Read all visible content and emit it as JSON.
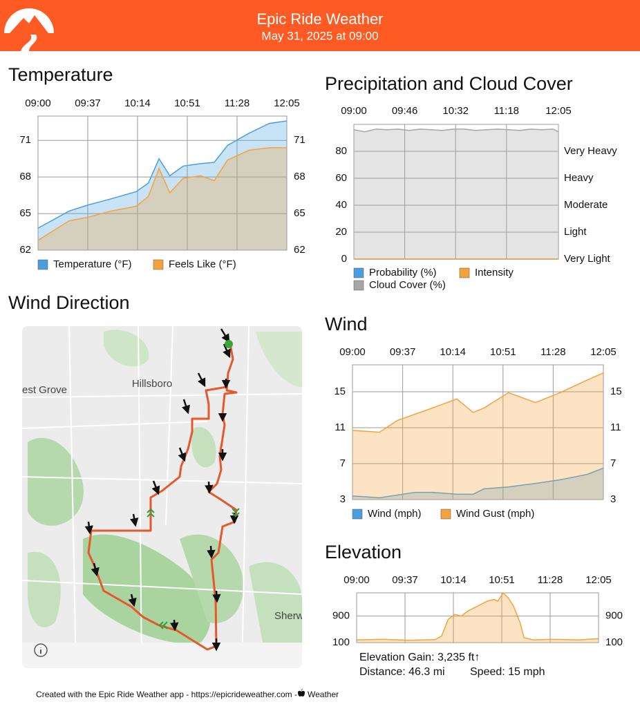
{
  "header": {
    "title": "Epic Ride Weather",
    "subtitle": "May 31, 2025 at 09:00"
  },
  "chart_data": [
    {
      "type": "area",
      "title": "Temperature",
      "x": [
        0,
        23,
        37,
        54,
        73,
        82,
        90,
        98,
        108,
        121,
        131,
        141,
        157,
        172,
        185
      ],
      "xlim": [
        0,
        185
      ],
      "xticks": [
        {
          "value": 0,
          "label": "09:00"
        },
        {
          "value": 37,
          "label": "09:37"
        },
        {
          "value": 74,
          "label": "10:14"
        },
        {
          "value": 111,
          "label": "10:51"
        },
        {
          "value": 148,
          "label": "11:28"
        },
        {
          "value": 185,
          "label": "12:05"
        }
      ],
      "ylim": [
        62,
        73
      ],
      "yticks": [
        62,
        65,
        68,
        71
      ],
      "right_labels": true,
      "grid": true,
      "series": [
        {
          "name": "Temperature (°F)",
          "color": "#4a9ee0",
          "values": [
            63.8,
            65.2,
            65.7,
            66.2,
            66.8,
            67.5,
            69.5,
            68.1,
            68.9,
            69.1,
            69.2,
            70.6,
            71.6,
            72.4,
            72.6
          ]
        },
        {
          "name": "Feels Like (°F)",
          "color": "#f5a23c",
          "values": [
            62.8,
            64.4,
            64.7,
            65.2,
            65.6,
            66.4,
            68.7,
            66.7,
            67.9,
            68.1,
            67.7,
            69.4,
            70.2,
            70.4,
            70.4
          ]
        }
      ]
    },
    {
      "type": "area",
      "title": "Precipitation and Cloud Cover",
      "x": [
        0,
        10,
        20,
        30,
        40,
        50,
        60,
        70,
        80,
        90,
        100,
        110,
        120,
        130,
        140,
        150,
        160,
        170,
        180,
        185
      ],
      "xlim": [
        0,
        185
      ],
      "xticks": [
        {
          "value": 0,
          "label": "09:00"
        },
        {
          "value": 46,
          "label": "09:46"
        },
        {
          "value": 92,
          "label": "10:32"
        },
        {
          "value": 138,
          "label": "11:18"
        },
        {
          "value": 185,
          "label": "12:05"
        }
      ],
      "ylim": [
        0,
        100
      ],
      "yticks": [
        0,
        20,
        40,
        60,
        80
      ],
      "y2lim": [
        0,
        100
      ],
      "y2ticks": [
        {
          "value": 0,
          "label": "Very Light"
        },
        {
          "value": 20,
          "label": "Light"
        },
        {
          "value": 40,
          "label": "Moderate"
        },
        {
          "value": 60,
          "label": "Heavy"
        },
        {
          "value": 80,
          "label": "Very Heavy"
        }
      ],
      "grid": true,
      "series": [
        {
          "name": "Probability (%)",
          "color": "#4a9ee0",
          "values": [
            0,
            0,
            0,
            0,
            0,
            0,
            0,
            0,
            0,
            0,
            0,
            0,
            0,
            0,
            0,
            0,
            0,
            0,
            0,
            0
          ]
        },
        {
          "name": "Intensity",
          "color": "#f5a23c",
          "axis": "y2",
          "values": [
            0,
            0,
            0,
            0,
            0,
            0,
            0,
            0,
            0,
            0,
            0,
            0,
            0,
            0,
            0,
            0,
            0,
            0,
            0,
            0
          ]
        },
        {
          "name": "Cloud Cover (%)",
          "color": "#a6a6a6",
          "values": [
            96,
            94.5,
            96.5,
            96,
            96.5,
            95.5,
            96.5,
            96,
            95.5,
            96.5,
            96.5,
            95.5,
            96,
            96.5,
            96,
            95.5,
            96.5,
            96,
            96.5,
            94.5
          ]
        }
      ]
    },
    {
      "type": "area",
      "title": "Wind",
      "x": [
        0,
        20,
        33,
        46,
        59,
        77,
        89,
        97,
        115,
        135,
        153,
        173,
        185
      ],
      "xlim": [
        0,
        185
      ],
      "xticks": [
        {
          "value": 0,
          "label": "09:00"
        },
        {
          "value": 37,
          "label": "09:37"
        },
        {
          "value": 74,
          "label": "10:14"
        },
        {
          "value": 111,
          "label": "10:51"
        },
        {
          "value": 148,
          "label": "11:28"
        },
        {
          "value": 185,
          "label": "12:05"
        }
      ],
      "ylim": [
        3,
        18
      ],
      "yticks": [
        3,
        7,
        11,
        15
      ],
      "right_labels": true,
      "grid": true,
      "series": [
        {
          "name": "Wind (mph)",
          "color": "#4a9ee0",
          "values": [
            3.4,
            3.2,
            3.5,
            3.8,
            3.8,
            3.6,
            3.6,
            4.2,
            4.4,
            4.8,
            5.2,
            5.8,
            6.5
          ]
        },
        {
          "name": "Wind Gust (mph)",
          "color": "#f5a23c",
          "values": [
            10.7,
            10.5,
            11.8,
            12.5,
            13.2,
            14.2,
            12.7,
            13.2,
            14.9,
            13.8,
            14.9,
            16.3,
            17.1
          ]
        }
      ]
    },
    {
      "type": "area",
      "title": "Elevation",
      "x": [
        0,
        20,
        40,
        60,
        65,
        70,
        75,
        80,
        85,
        90,
        95,
        100,
        105,
        108,
        112,
        116,
        120,
        125,
        128,
        135,
        150,
        170,
        185
      ],
      "xlim": [
        0,
        185
      ],
      "xticks": [
        {
          "value": 0,
          "label": "09:00"
        },
        {
          "value": 37,
          "label": "09:37"
        },
        {
          "value": 74,
          "label": "10:14"
        },
        {
          "value": 111,
          "label": "10:51"
        },
        {
          "value": 148,
          "label": "11:28"
        },
        {
          "value": 185,
          "label": "12:05"
        }
      ],
      "ylim": [
        100,
        1600
      ],
      "yticks": [
        100,
        900
      ],
      "right_labels": true,
      "grid": true,
      "series": [
        {
          "color": "#f5a23c",
          "values": [
            180,
            200,
            170,
            190,
            300,
            800,
            950,
            900,
            1050,
            1150,
            1250,
            1350,
            1400,
            1350,
            1600,
            1450,
            1200,
            700,
            250,
            180,
            200,
            180,
            220
          ]
        }
      ],
      "annotations": [
        "Elevation Gain: 3,235 ft↑",
        "Distance: 46.3 mi",
        "Speed: 15 mph"
      ]
    }
  ],
  "map": {
    "title": "Wind Direction",
    "labels": [
      "Hillsboro",
      "est Grove",
      "Sherw"
    ]
  },
  "footer": {
    "text": "Created with the Epic Ride Weather app - https://epicrideweather.com - ",
    "brand": "Weather"
  }
}
